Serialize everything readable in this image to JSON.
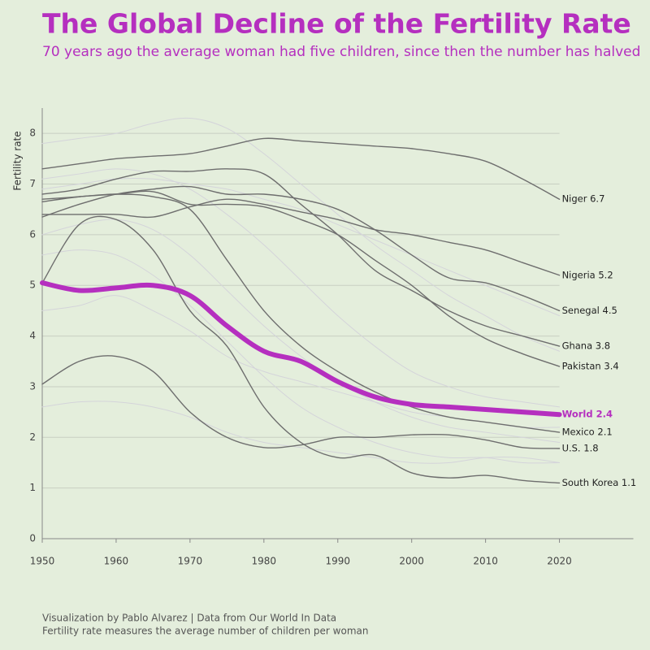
{
  "chart_data": {
    "type": "line",
    "title": "The Global Decline of the Fertility Rate",
    "subtitle": "70 years ago the average woman had five children, since then the number has halved",
    "y_label": "Fertility rate",
    "footer": [
      "Visualization by Pablo Alvarez | Data from Our World In Data",
      "Fertility rate measures the average number of children per woman"
    ],
    "x": [
      1950,
      1955,
      1960,
      1965,
      1970,
      1975,
      1980,
      1985,
      1990,
      1995,
      2000,
      2005,
      2010,
      2015,
      2020
    ],
    "xlim": [
      1950,
      2030
    ],
    "xticks": [
      1950,
      1960,
      1970,
      1980,
      1990,
      2000,
      2010,
      2020
    ],
    "ylim": [
      0,
      8.5
    ],
    "yticks": [
      0,
      1,
      2,
      3,
      4,
      5,
      6,
      7,
      8
    ],
    "grid": true,
    "series": [
      {
        "color": "#d4d4da",
        "values": [
          7.8,
          7.9,
          8.0,
          8.2,
          8.3,
          8.1,
          7.6,
          7.0,
          6.4,
          5.8,
          5.3,
          4.8,
          4.4,
          4.0,
          3.7
        ]
      },
      {
        "color": "#d4d4da",
        "values": [
          6.0,
          6.2,
          6.3,
          6.1,
          5.6,
          4.9,
          4.2,
          3.6,
          3.1,
          2.7,
          2.4,
          2.2,
          2.1,
          2.0,
          1.9
        ]
      },
      {
        "color": "#d4d4da",
        "values": [
          5.6,
          5.7,
          5.6,
          5.2,
          4.6,
          3.9,
          3.2,
          2.6,
          2.2,
          1.9,
          1.7,
          1.6,
          1.6,
          1.5,
          1.5
        ]
      },
      {
        "color": "#d4d4da",
        "values": [
          2.6,
          2.7,
          2.7,
          2.6,
          2.4,
          2.1,
          1.9,
          1.8,
          1.7,
          1.6,
          1.5,
          1.5,
          1.6,
          1.6,
          1.5
        ]
      },
      {
        "color": "#d4d4da",
        "values": [
          6.9,
          7.0,
          7.1,
          7.1,
          7.0,
          6.9,
          6.7,
          6.5,
          6.2,
          5.9,
          5.6,
          5.3,
          5.0,
          4.7,
          4.4
        ]
      },
      {
        "color": "#d4d4da",
        "values": [
          4.5,
          4.6,
          4.8,
          4.5,
          4.1,
          3.6,
          3.3,
          3.1,
          2.9,
          2.7,
          2.5,
          2.4,
          2.3,
          2.2,
          2.2
        ]
      },
      {
        "color": "#d4d4da",
        "values": [
          7.1,
          7.2,
          7.3,
          7.2,
          6.9,
          6.4,
          5.8,
          5.1,
          4.4,
          3.8,
          3.3,
          3.0,
          2.8,
          2.7,
          2.6
        ]
      },
      {
        "name": "Niger",
        "label": "Niger 6.7",
        "color": "#6e6e6e",
        "values": [
          7.3,
          7.4,
          7.5,
          7.55,
          7.6,
          7.75,
          7.9,
          7.85,
          7.8,
          7.75,
          7.7,
          7.6,
          7.45,
          7.1,
          6.7
        ]
      },
      {
        "name": "Nigeria",
        "label": "Nigeria 5.2",
        "color": "#6e6e6e",
        "values": [
          6.4,
          6.4,
          6.4,
          6.35,
          6.55,
          6.7,
          6.6,
          6.45,
          6.3,
          6.1,
          6.0,
          5.85,
          5.7,
          5.45,
          5.2
        ]
      },
      {
        "name": "Senegal",
        "label": "Senegal 4.5",
        "color": "#6e6e6e",
        "values": [
          6.35,
          6.6,
          6.8,
          6.9,
          6.95,
          6.8,
          6.8,
          6.7,
          6.5,
          6.1,
          5.6,
          5.15,
          5.05,
          4.8,
          4.5
        ]
      },
      {
        "name": "Ghana",
        "label": "Ghana 3.8",
        "color": "#6e6e6e",
        "values": [
          6.8,
          6.9,
          7.1,
          7.25,
          7.25,
          7.3,
          7.2,
          6.6,
          6.0,
          5.3,
          4.9,
          4.5,
          4.2,
          4.0,
          3.8
        ]
      },
      {
        "name": "Pakistan",
        "label": "Pakistan 3.4",
        "color": "#6e6e6e",
        "values": [
          6.65,
          6.75,
          6.8,
          6.85,
          6.6,
          6.6,
          6.55,
          6.3,
          6.0,
          5.5,
          5.0,
          4.4,
          3.95,
          3.65,
          3.4
        ]
      },
      {
        "name": "Mexico",
        "label": "Mexico 2.1",
        "color": "#6e6e6e",
        "values": [
          6.7,
          6.75,
          6.8,
          6.75,
          6.5,
          5.5,
          4.5,
          3.8,
          3.3,
          2.9,
          2.6,
          2.4,
          2.3,
          2.2,
          2.1
        ]
      },
      {
        "name": "U.S.",
        "label": "U.S. 1.8",
        "color": "#6e6e6e",
        "values": [
          3.05,
          3.5,
          3.6,
          3.3,
          2.5,
          2.0,
          1.8,
          1.85,
          2.0,
          2.0,
          2.05,
          2.05,
          1.95,
          1.8,
          1.78
        ]
      },
      {
        "name": "South Korea",
        "label": "South Korea 1.1",
        "color": "#6e6e6e",
        "values": [
          5.05,
          6.2,
          6.3,
          5.7,
          4.5,
          3.8,
          2.6,
          1.9,
          1.6,
          1.65,
          1.3,
          1.2,
          1.25,
          1.15,
          1.1
        ]
      },
      {
        "name": "World",
        "label": "World 2.4",
        "color": "#b52fbf",
        "highlight": true,
        "values": [
          5.05,
          4.9,
          4.95,
          5.0,
          4.8,
          4.2,
          3.7,
          3.5,
          3.1,
          2.8,
          2.65,
          2.6,
          2.55,
          2.5,
          2.45
        ]
      }
    ]
  }
}
